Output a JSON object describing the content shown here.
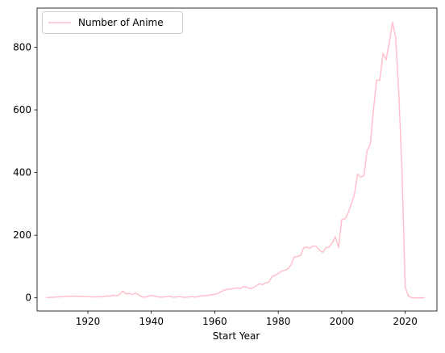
{
  "chart_data": {
    "type": "line",
    "title": "",
    "xlabel": "Start Year",
    "ylabel": "",
    "xlim": [
      1904,
      2030
    ],
    "ylim": [
      -42,
      925
    ],
    "x_ticks": [
      1920,
      1940,
      1960,
      1980,
      2000,
      2020
    ],
    "y_ticks": [
      0,
      200,
      400,
      600,
      800
    ],
    "grid": false,
    "legend_position": "top-left",
    "series": [
      {
        "name": "Number of Anime",
        "color": "#ffc0cb",
        "x": [
          1907,
          1909,
          1911,
          1913,
          1915,
          1917,
          1919,
          1921,
          1923,
          1925,
          1926,
          1927,
          1928,
          1929,
          1930,
          1931,
          1932,
          1933,
          1934,
          1935,
          1936,
          1937,
          1938,
          1939,
          1940,
          1941,
          1942,
          1943,
          1944,
          1945,
          1946,
          1947,
          1948,
          1949,
          1950,
          1951,
          1952,
          1953,
          1954,
          1955,
          1956,
          1957,
          1958,
          1959,
          1960,
          1961,
          1962,
          1963,
          1964,
          1965,
          1966,
          1967,
          1968,
          1969,
          1970,
          1971,
          1972,
          1973,
          1974,
          1975,
          1976,
          1977,
          1978,
          1979,
          1980,
          1981,
          1982,
          1983,
          1984,
          1985,
          1986,
          1987,
          1988,
          1989,
          1990,
          1991,
          1992,
          1993,
          1994,
          1995,
          1996,
          1997,
          1998,
          1999,
          2000,
          2001,
          2002,
          2003,
          2004,
          2005,
          2006,
          2007,
          2008,
          2009,
          2010,
          2011,
          2012,
          2013,
          2014,
          2015,
          2016,
          2017,
          2018,
          2019,
          2020,
          2021,
          2022,
          2023,
          2024,
          2025,
          2026
        ],
        "values": [
          1,
          2,
          3,
          4,
          5,
          5,
          4,
          3,
          3,
          4,
          6,
          5,
          8,
          7,
          10,
          22,
          12,
          14,
          11,
          15,
          10,
          3,
          2,
          5,
          7,
          6,
          3,
          2,
          3,
          4,
          5,
          2,
          3,
          4,
          2,
          2,
          3,
          4,
          2,
          5,
          6,
          7,
          8,
          10,
          12,
          14,
          20,
          25,
          27,
          28,
          30,
          32,
          30,
          36,
          34,
          30,
          32,
          38,
          45,
          42,
          48,
          50,
          68,
          72,
          78,
          85,
          88,
          92,
          105,
          130,
          132,
          135,
          160,
          162,
          158,
          166,
          164,
          152,
          145,
          160,
          162,
          175,
          195,
          160,
          250,
          252,
          270,
          300,
          330,
          395,
          385,
          390,
          470,
          490,
          600,
          695,
          695,
          780,
          760,
          815,
          880,
          830,
          650,
          400,
          35,
          5,
          1,
          0,
          0,
          0,
          1
        ]
      }
    ]
  }
}
